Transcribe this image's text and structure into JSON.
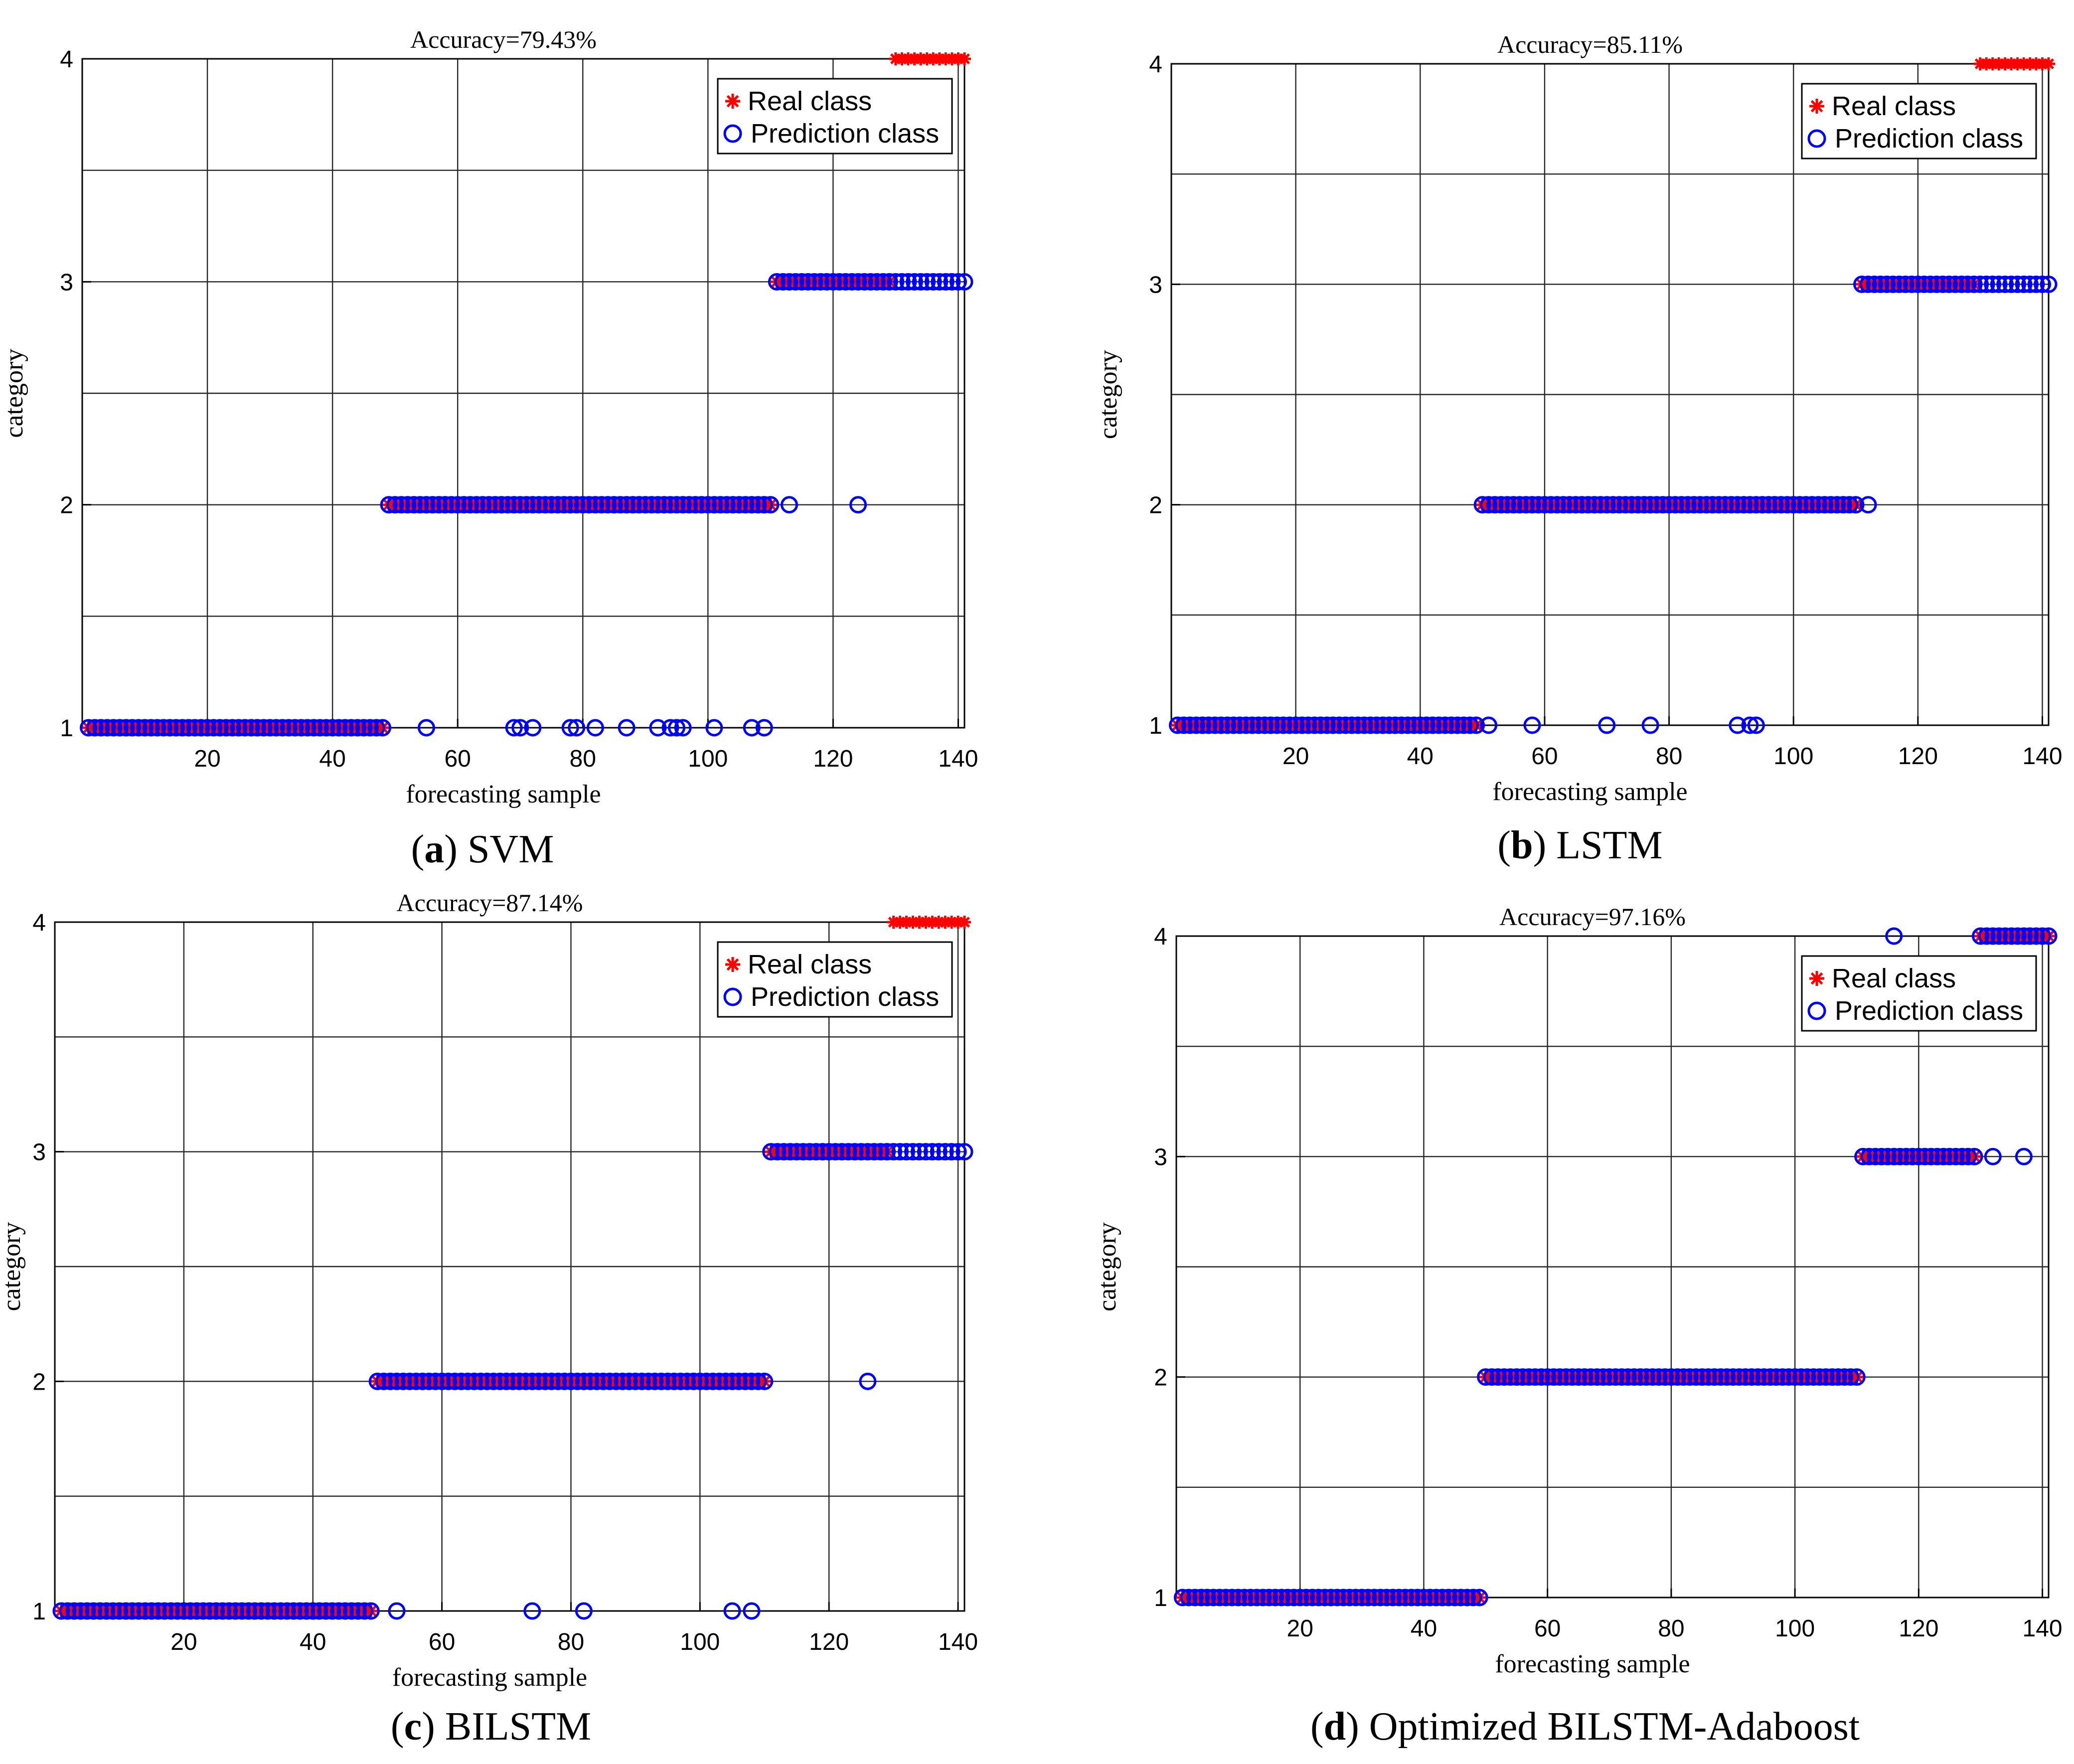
{
  "chart_data": [
    {
      "type": "scatter",
      "panel_letter": "a",
      "caption": "SVM",
      "title": "Accuracy=79.43%",
      "xlabel": "forecasting sample",
      "ylabel": "category",
      "xlim": [
        0,
        141
      ],
      "ylim": [
        1,
        4
      ],
      "xticks": [
        20,
        40,
        60,
        80,
        100,
        120,
        140
      ],
      "yticks": [
        1,
        2,
        3,
        4
      ],
      "legend": [
        "Real class",
        "Prediction class"
      ],
      "legend_position": "top-right",
      "real_class": [
        {
          "start": 1,
          "end": 48,
          "value": 1
        },
        {
          "start": 49,
          "end": 110,
          "value": 2
        },
        {
          "start": 111,
          "end": 129,
          "value": 3
        },
        {
          "start": 130,
          "end": 141,
          "value": 4
        }
      ],
      "prediction_class": [
        {
          "start": 1,
          "end": 48,
          "value": 1
        },
        {
          "start": 49,
          "end": 110,
          "value": 2
        },
        {
          "start": 111,
          "end": 141,
          "value": 3
        }
      ],
      "prediction_outliers": [
        {
          "x": 55,
          "y": 1
        },
        {
          "x": 69,
          "y": 1
        },
        {
          "x": 70,
          "y": 1
        },
        {
          "x": 72,
          "y": 1
        },
        {
          "x": 78,
          "y": 1
        },
        {
          "x": 79,
          "y": 1
        },
        {
          "x": 82,
          "y": 1
        },
        {
          "x": 87,
          "y": 1
        },
        {
          "x": 92,
          "y": 1
        },
        {
          "x": 94,
          "y": 1
        },
        {
          "x": 95,
          "y": 1
        },
        {
          "x": 96,
          "y": 1
        },
        {
          "x": 101,
          "y": 1
        },
        {
          "x": 107,
          "y": 1
        },
        {
          "x": 109,
          "y": 1
        },
        {
          "x": 113,
          "y": 2
        },
        {
          "x": 124,
          "y": 2
        }
      ]
    },
    {
      "type": "scatter",
      "panel_letter": "b",
      "caption": "LSTM",
      "title": "Accuracy=85.11%",
      "xlabel": "forecasting sample",
      "ylabel": "category",
      "xlim": [
        0,
        141
      ],
      "ylim": [
        1,
        4
      ],
      "xticks": [
        20,
        40,
        60,
        80,
        100,
        120,
        140
      ],
      "yticks": [
        1,
        2,
        3,
        4
      ],
      "legend": [
        "Real class",
        "Prediction class"
      ],
      "legend_position": "top-right",
      "real_class": [
        {
          "start": 1,
          "end": 49,
          "value": 1
        },
        {
          "start": 50,
          "end": 110,
          "value": 2
        },
        {
          "start": 111,
          "end": 129,
          "value": 3
        },
        {
          "start": 130,
          "end": 141,
          "value": 4
        }
      ],
      "prediction_class": [
        {
          "start": 1,
          "end": 49,
          "value": 1
        },
        {
          "start": 50,
          "end": 110,
          "value": 2
        },
        {
          "start": 111,
          "end": 141,
          "value": 3
        }
      ],
      "prediction_outliers": [
        {
          "x": 51,
          "y": 1
        },
        {
          "x": 58,
          "y": 1
        },
        {
          "x": 70,
          "y": 1
        },
        {
          "x": 77,
          "y": 1
        },
        {
          "x": 91,
          "y": 1
        },
        {
          "x": 93,
          "y": 1
        },
        {
          "x": 94,
          "y": 1
        },
        {
          "x": 112,
          "y": 2
        }
      ]
    },
    {
      "type": "scatter",
      "panel_letter": "c",
      "caption": "BILSTM",
      "title": "Accuracy=87.14%",
      "xlabel": "forecasting sample",
      "ylabel": "category",
      "xlim": [
        0,
        141
      ],
      "ylim": [
        1,
        4
      ],
      "xticks": [
        20,
        40,
        60,
        80,
        100,
        120,
        140
      ],
      "yticks": [
        1,
        2,
        3,
        4
      ],
      "legend": [
        "Real class",
        "Prediction class"
      ],
      "legend_position": "top-right",
      "real_class": [
        {
          "start": 1,
          "end": 49,
          "value": 1
        },
        {
          "start": 50,
          "end": 110,
          "value": 2
        },
        {
          "start": 111,
          "end": 129,
          "value": 3
        },
        {
          "start": 130,
          "end": 141,
          "value": 4
        }
      ],
      "prediction_class": [
        {
          "start": 1,
          "end": 49,
          "value": 1
        },
        {
          "start": 50,
          "end": 110,
          "value": 2
        },
        {
          "start": 111,
          "end": 141,
          "value": 3
        }
      ],
      "prediction_outliers": [
        {
          "x": 53,
          "y": 1
        },
        {
          "x": 74,
          "y": 1
        },
        {
          "x": 82,
          "y": 1
        },
        {
          "x": 105,
          "y": 1
        },
        {
          "x": 108,
          "y": 1
        },
        {
          "x": 126,
          "y": 2
        }
      ]
    },
    {
      "type": "scatter",
      "panel_letter": "d",
      "caption": "Optimized BILSTM-Adaboost",
      "title": "Accuracy=97.16%",
      "xlabel": "forecasting sample",
      "ylabel": "category",
      "xlim": [
        0,
        141
      ],
      "ylim": [
        1,
        4
      ],
      "xticks": [
        20,
        40,
        60,
        80,
        100,
        120,
        140
      ],
      "yticks": [
        1,
        2,
        3,
        4
      ],
      "legend": [
        "Real class",
        "Prediction class"
      ],
      "legend_position": "top-right",
      "real_class": [
        {
          "start": 1,
          "end": 49,
          "value": 1
        },
        {
          "start": 50,
          "end": 110,
          "value": 2
        },
        {
          "start": 111,
          "end": 129,
          "value": 3
        },
        {
          "start": 130,
          "end": 141,
          "value": 4
        }
      ],
      "prediction_class": [
        {
          "start": 1,
          "end": 49,
          "value": 1
        },
        {
          "start": 50,
          "end": 110,
          "value": 2
        },
        {
          "start": 111,
          "end": 129,
          "value": 3
        },
        {
          "start": 130,
          "end": 141,
          "value": 4
        }
      ],
      "prediction_outliers": [
        {
          "x": 132,
          "y": 3
        },
        {
          "x": 137,
          "y": 3
        },
        {
          "x": 116,
          "y": 4
        }
      ]
    }
  ]
}
